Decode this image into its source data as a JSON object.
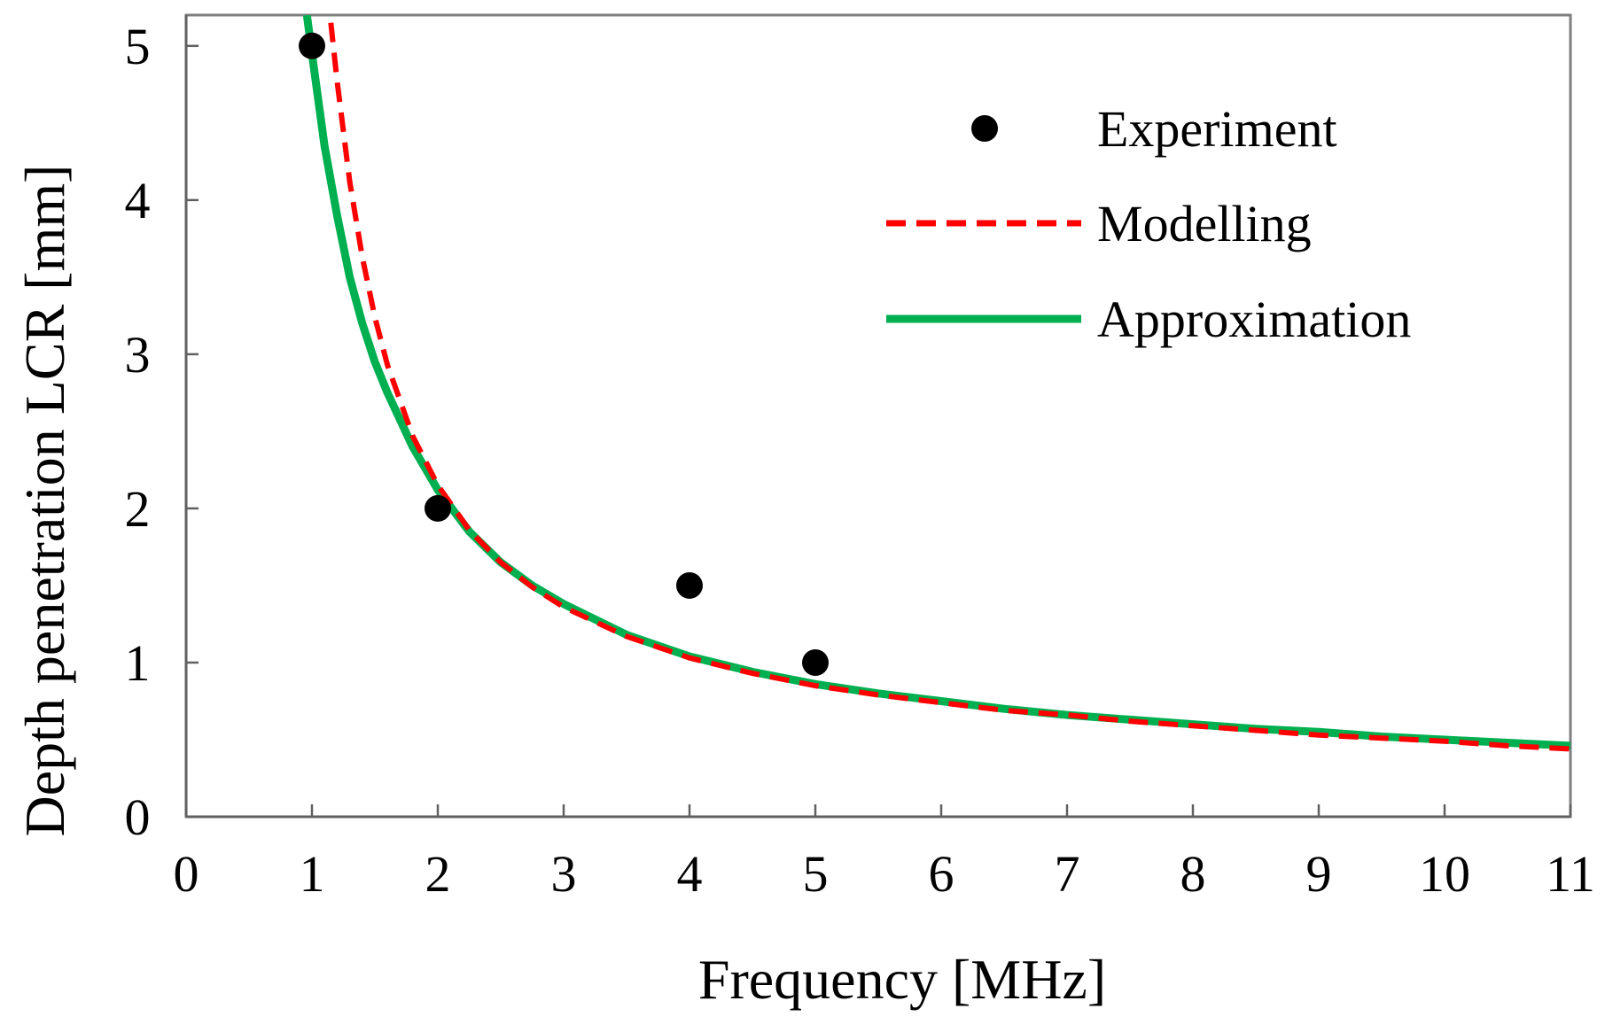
{
  "chart_data": {
    "type": "line",
    "title": "",
    "xlabel": "Frequency [MHz]",
    "ylabel": "Depth penetration LCR [mm]",
    "xlim": [
      0,
      11
    ],
    "ylim": [
      0,
      5.2
    ],
    "x_ticks": [
      0,
      1,
      2,
      3,
      4,
      5,
      6,
      7,
      8,
      9,
      10,
      11
    ],
    "y_ticks": [
      0,
      1,
      2,
      3,
      4,
      5
    ],
    "grid": false,
    "legend_position": "top-right",
    "series": [
      {
        "name": "Experiment",
        "kind": "scatter",
        "color": "#000000",
        "x": [
          1,
          2,
          4,
          5
        ],
        "y": [
          5.0,
          2.0,
          1.5,
          1.0
        ]
      },
      {
        "name": "Modelling",
        "kind": "line",
        "style": "dashed",
        "color": "#ff0000",
        "x": [
          1.15,
          1.2,
          1.3,
          1.4,
          1.5,
          1.6,
          1.8,
          2.0,
          2.25,
          2.5,
          2.75,
          3.0,
          3.5,
          4.0,
          4.5,
          5.0,
          5.5,
          6.0,
          6.5,
          7.0,
          7.5,
          8.0,
          8.5,
          9.0,
          9.5,
          10.0,
          10.5,
          11.0
        ],
        "y": [
          5.15,
          4.77,
          4.12,
          3.63,
          3.24,
          2.93,
          2.47,
          2.15,
          1.86,
          1.65,
          1.49,
          1.36,
          1.17,
          1.03,
          0.93,
          0.85,
          0.79,
          0.74,
          0.69,
          0.66,
          0.62,
          0.59,
          0.56,
          0.53,
          0.51,
          0.49,
          0.46,
          0.44
        ]
      },
      {
        "name": "Approximation",
        "kind": "line",
        "style": "solid",
        "color": "#00b050",
        "x": [
          0.96,
          1.0,
          1.1,
          1.2,
          1.3,
          1.4,
          1.5,
          1.6,
          1.8,
          2.0,
          2.25,
          2.5,
          2.75,
          3.0,
          3.5,
          4.0,
          4.5,
          5.0,
          5.5,
          6.0,
          6.5,
          7.0,
          7.5,
          8.0,
          8.5,
          9.0,
          9.5,
          10.0,
          10.5,
          11.0
        ],
        "y": [
          5.2,
          4.95,
          4.35,
          3.9,
          3.5,
          3.2,
          2.95,
          2.75,
          2.4,
          2.12,
          1.85,
          1.65,
          1.5,
          1.38,
          1.18,
          1.04,
          0.94,
          0.86,
          0.8,
          0.75,
          0.7,
          0.66,
          0.63,
          0.6,
          0.57,
          0.55,
          0.52,
          0.5,
          0.48,
          0.46
        ]
      }
    ]
  }
}
